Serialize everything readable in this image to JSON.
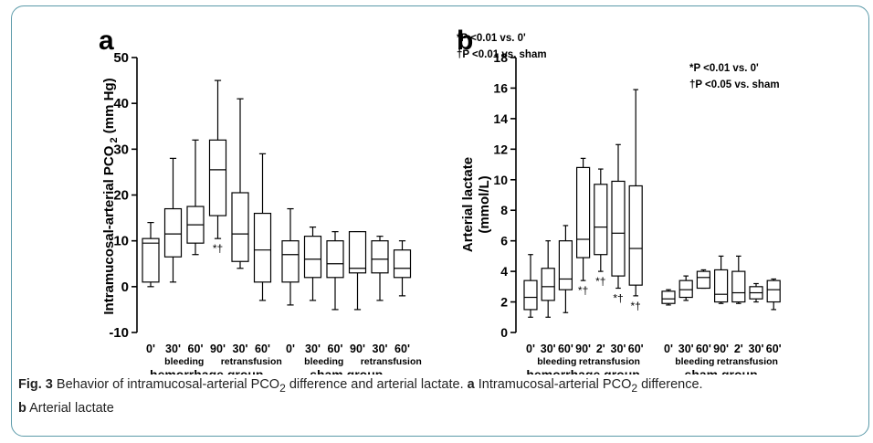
{
  "caption": {
    "fig_label": "Fig. 3",
    "text_1": " Behavior of intramucosal-arterial PCO",
    "sub_2": "2",
    "text_2": " difference and arterial lactate. ",
    "bold_a": "a",
    "text_3": " Intramucosal-arterial PCO",
    "sub_2b": "2",
    "text_4": " difference.",
    "bold_b": "b",
    "text_5": " Arterial lactate"
  },
  "chart_data": [
    {
      "panel_label": "a",
      "type": "box",
      "ylabel_main": "Intramucosal-arterial PCO",
      "ylabel_sub": "2",
      "ylabel_unit": " (mm Hg)",
      "ylim": [
        -10,
        50
      ],
      "yticks": [
        "-10",
        "0",
        "10",
        "20",
        "30",
        "40",
        "50"
      ],
      "annotations": [
        "*P <0.01 vs. 0'",
        "†P <0.01 vs. sham"
      ],
      "groups": [
        {
          "name": "hemorrhage group",
          "sublabels": [
            "bleeding",
            "retransfusion"
          ],
          "boxes": [
            {
              "label": "0'",
              "min": 0,
              "q1": 1,
              "median": 9.5,
              "q3": 10.5,
              "max": 14,
              "sig": ""
            },
            {
              "label": "30'",
              "min": 1,
              "q1": 6.5,
              "median": 11.5,
              "q3": 17,
              "max": 28,
              "sig": ""
            },
            {
              "label": "60'",
              "min": 7,
              "q1": 9.5,
              "median": 13.5,
              "q3": 17.5,
              "max": 32,
              "sig": ""
            },
            {
              "label": "90'",
              "min": 10.5,
              "q1": 15.5,
              "median": 25.5,
              "q3": 32,
              "max": 45,
              "sig": "*†"
            },
            {
              "label": "30'",
              "min": 4,
              "q1": 5.5,
              "median": 11.5,
              "q3": 20.5,
              "max": 41,
              "sig": ""
            },
            {
              "label": "60'",
              "min": -3,
              "q1": 1,
              "median": 8,
              "q3": 16,
              "max": 29,
              "sig": ""
            }
          ]
        },
        {
          "name": "sham group",
          "sublabels": [
            "bleeding",
            "retransfusion"
          ],
          "boxes": [
            {
              "label": "0'",
              "min": -4,
              "q1": 1,
              "median": 7,
              "q3": 10,
              "max": 17,
              "sig": ""
            },
            {
              "label": "30'",
              "min": -3,
              "q1": 2,
              "median": 6,
              "q3": 11,
              "max": 13,
              "sig": ""
            },
            {
              "label": "60'",
              "min": -5,
              "q1": 2,
              "median": 5,
              "q3": 10,
              "max": 12,
              "sig": ""
            },
            {
              "label": "90'",
              "min": -5,
              "q1": 3,
              "median": 4,
              "q3": 12,
              "max": 12,
              "sig": ""
            },
            {
              "label": "30'",
              "min": -3,
              "q1": 3,
              "median": 6,
              "q3": 10,
              "max": 11,
              "sig": ""
            },
            {
              "label": "60'",
              "min": -2,
              "q1": 2,
              "median": 4,
              "q3": 8,
              "max": 10,
              "sig": ""
            }
          ]
        }
      ]
    },
    {
      "panel_label": "b",
      "type": "box",
      "ylabel_main": "Arterial lactate",
      "ylabel_unit": "(mmol/L)",
      "ylim": [
        0,
        18
      ],
      "yticks": [
        "0",
        "2",
        "4",
        "6",
        "8",
        "10",
        "12",
        "14",
        "16",
        "18"
      ],
      "annotations": [
        "*P <0.01 vs. 0'",
        "†P <0.05 vs. sham"
      ],
      "groups": [
        {
          "name": "hemorrhage group",
          "sublabels": [
            "bleeding",
            "retransfusion"
          ],
          "boxes": [
            {
              "label": "0'",
              "min": 1,
              "q1": 1.5,
              "median": 2.3,
              "q3": 3.4,
              "max": 5.1,
              "sig": ""
            },
            {
              "label": "30'",
              "min": 1,
              "q1": 2.1,
              "median": 3,
              "q3": 4.2,
              "max": 6,
              "sig": ""
            },
            {
              "label": "60'",
              "min": 1.3,
              "q1": 2.8,
              "median": 3.5,
              "q3": 6,
              "max": 7,
              "sig": ""
            },
            {
              "label": "90'",
              "min": 3.4,
              "q1": 4.9,
              "median": 6.1,
              "q3": 10.8,
              "max": 11.4,
              "sig": "*†"
            },
            {
              "label": "2'",
              "min": 4,
              "q1": 5.1,
              "median": 6.9,
              "q3": 9.7,
              "max": 10.7,
              "sig": "*†"
            },
            {
              "label": "30'",
              "min": 2.9,
              "q1": 3.7,
              "median": 6.5,
              "q3": 9.9,
              "max": 12.3,
              "sig": "*†"
            },
            {
              "label": "60'",
              "min": 2.4,
              "q1": 3.1,
              "median": 5.5,
              "q3": 9.6,
              "max": 15.9,
              "sig": "*†"
            }
          ]
        },
        {
          "name": "sham group",
          "sublabels": [
            "bleeding",
            "retransfusion"
          ],
          "boxes": [
            {
              "label": "0'",
              "min": 1.8,
              "q1": 1.9,
              "median": 2.2,
              "q3": 2.7,
              "max": 2.8,
              "sig": ""
            },
            {
              "label": "30'",
              "min": 2.1,
              "q1": 2.3,
              "median": 2.8,
              "q3": 3.4,
              "max": 3.7,
              "sig": ""
            },
            {
              "label": "60'",
              "min": 2.9,
              "q1": 2.9,
              "median": 3.6,
              "q3": 4,
              "max": 4.1,
              "sig": ""
            },
            {
              "label": "90'",
              "min": 1.9,
              "q1": 2,
              "median": 2.5,
              "q3": 4.1,
              "max": 5,
              "sig": ""
            },
            {
              "label": "2'",
              "min": 1.9,
              "q1": 2,
              "median": 2.6,
              "q3": 4,
              "max": 5,
              "sig": ""
            },
            {
              "label": "30'",
              "min": 2,
              "q1": 2.2,
              "median": 2.6,
              "q3": 3,
              "max": 3.2,
              "sig": ""
            },
            {
              "label": "60'",
              "min": 1.5,
              "q1": 2,
              "median": 2.8,
              "q3": 3.4,
              "max": 3.5,
              "sig": ""
            }
          ]
        }
      ]
    }
  ]
}
